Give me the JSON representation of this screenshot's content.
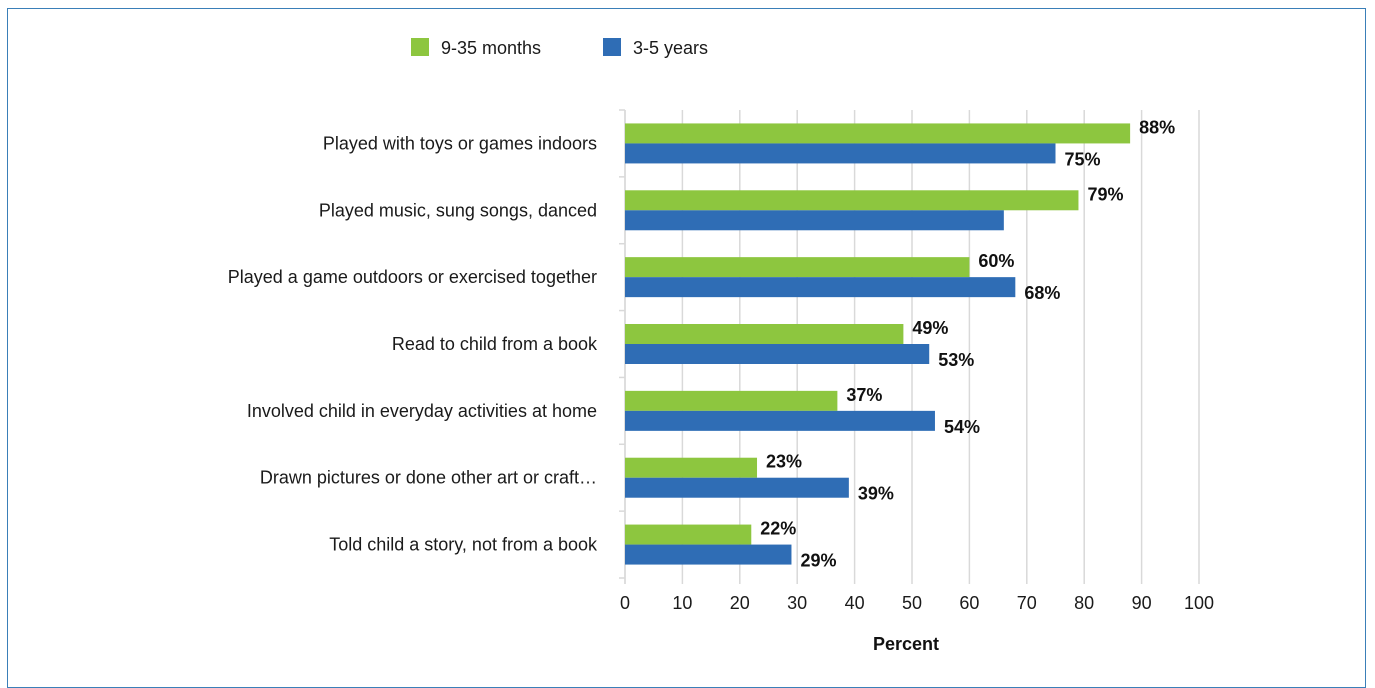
{
  "chart_data": {
    "type": "bar",
    "orientation": "horizontal",
    "categories": [
      "Played with toys or games indoors",
      "Played music, sung songs, danced",
      "Played a game outdoors or exercised together",
      "Read to child from a book",
      "Involved child in everyday activities at home",
      "Drawn pictures or done other art or craft…",
      "Told child a story, not from a book"
    ],
    "series": [
      {
        "name": "9-35 months",
        "color": "#8dc63f",
        "values": [
          88,
          79,
          60,
          48.5,
          37,
          23,
          22
        ],
        "labels": [
          "88%",
          "79%",
          "60%",
          "49%",
          "37%",
          "23%",
          "22%"
        ]
      },
      {
        "name": "3-5 years",
        "color": "#2f6db5",
        "values": [
          75,
          66,
          68,
          53,
          54,
          39,
          29
        ],
        "labels": [
          "75%",
          "",
          "68%",
          "53%",
          "54%",
          "39%",
          "29%"
        ]
      }
    ],
    "xlabel": "Percent",
    "ylabel": "",
    "xlim": [
      0,
      100
    ],
    "xticks": [
      0,
      10,
      20,
      30,
      40,
      50,
      60,
      70,
      80,
      90,
      100
    ],
    "grid": "vertical",
    "legend": "top-left"
  }
}
